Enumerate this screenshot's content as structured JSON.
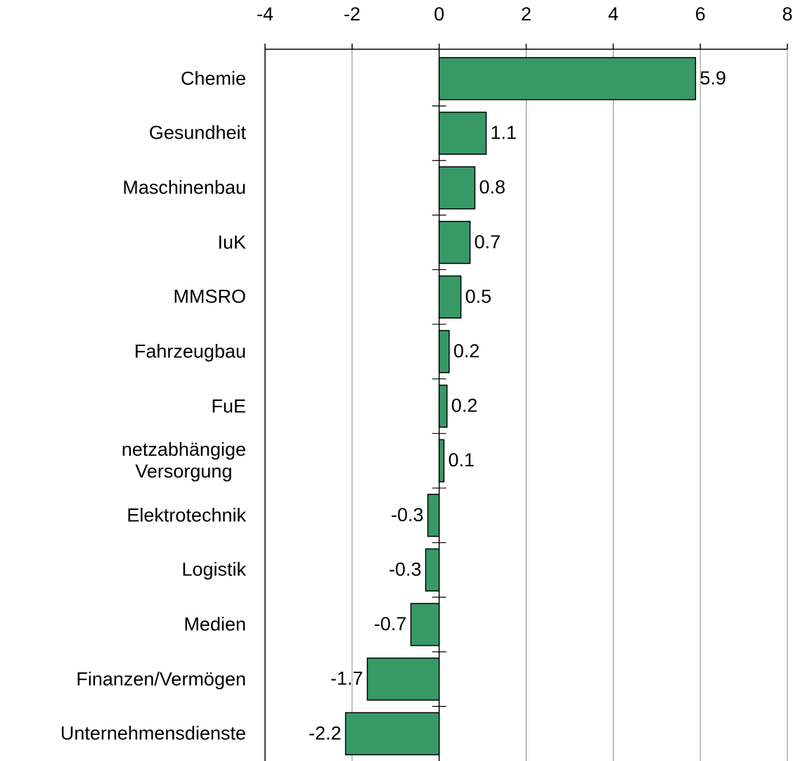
{
  "chart_data": {
    "type": "bar",
    "orientation": "horizontal",
    "categories": [
      "Chemie",
      "Gesundheit",
      "Maschinenbau",
      "IuK",
      "MMSRO",
      "Fahrzeugbau",
      "FuE",
      "netzabhängige\nVersorgung",
      "Elektrotechnik",
      "Logistik",
      "Medien",
      "Finanzen/Vermögen",
      "Unternehmensdienste"
    ],
    "values": [
      5.89,
      1.08,
      0.82,
      0.71,
      0.5,
      0.23,
      0.18,
      0.11,
      -0.26,
      -0.31,
      -0.65,
      -1.65,
      -2.15
    ],
    "value_labels": [
      "5.9",
      "1.1",
      "0.8",
      "0.7",
      "0.5",
      "0.2",
      "0.2",
      "0.1",
      "-0.3",
      "-0.3",
      "-0.7",
      "-1.7",
      "-2.2"
    ],
    "color": "#379a66",
    "xlim": [
      -4,
      8
    ],
    "xticks": [
      -4,
      -2,
      0,
      2,
      4,
      6,
      8
    ],
    "grid": true
  }
}
